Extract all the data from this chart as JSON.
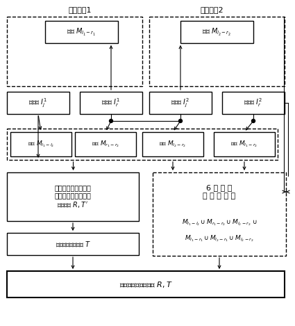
{
  "bg_color": "#ffffff",
  "fig_width": 4.25,
  "fig_height": 4.69,
  "label_viewangle1": "测量视角1",
  "label_viewangle2": "测量视角2",
  "box_juheMl1r1": "集合 $M_{l_1-r_1}$",
  "box_juheMl2r2": "集合 $M_{l_2-r_2}$",
  "box_leftimg1": "左图像 $I_j^1$",
  "box_rightimg1": "右图像 $I_r^1$",
  "box_leftimg2": "左图像 $I_j^2$",
  "box_rightimg2": "右图像 $I_r^2$",
  "box_M_l1l2": "集合 $M_{l_1-l_2}$",
  "box_M_r1r2": "集合 $M_{r_1-r_2}$",
  "box_M_l2r2_b": "集合 $M_{l_2-r_2}$",
  "box_M_l1r2": "集合 $M_{l_1-r_2}$",
  "box_estimate": "利用多视几何原理估\n计测量视角间的几何\n变换参数 $R,T'$",
  "box_recover": "恢复实际平移向量 $T$",
  "box_optimize": "优化立体传感器位姿 $R,T$",
  "box_6points_title": "6 个 同 名\n对 应 点 集 合",
  "box_6pts_line1": "$M_{l_1-l_2}\\cup M_{r_1-r_2}\\cup M_{l_2-r_2}$ $\\cup$",
  "box_6pts_line2": "$M_{l_1-r_1}\\cup M_{l_2-r_1}\\cup M_{l_2-r_2}$"
}
